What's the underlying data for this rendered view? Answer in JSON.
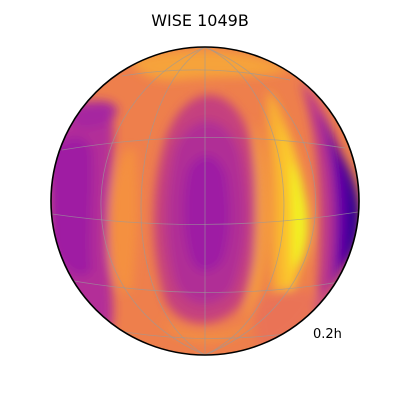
{
  "figure": {
    "title": "WISE 1049B",
    "time_label": "0.2h"
  },
  "colormap": {
    "name": "plasma",
    "deep": "#0d0887",
    "violet": "#5a02a3",
    "purple": "#9a1aa5",
    "magenta": "#b22f97",
    "rose": "#cc4778",
    "coral": "#e06461",
    "orange": "#f08a44",
    "amber": "#f9a93a",
    "gold": "#fcce2a",
    "yellow": "#f0f921"
  }
}
